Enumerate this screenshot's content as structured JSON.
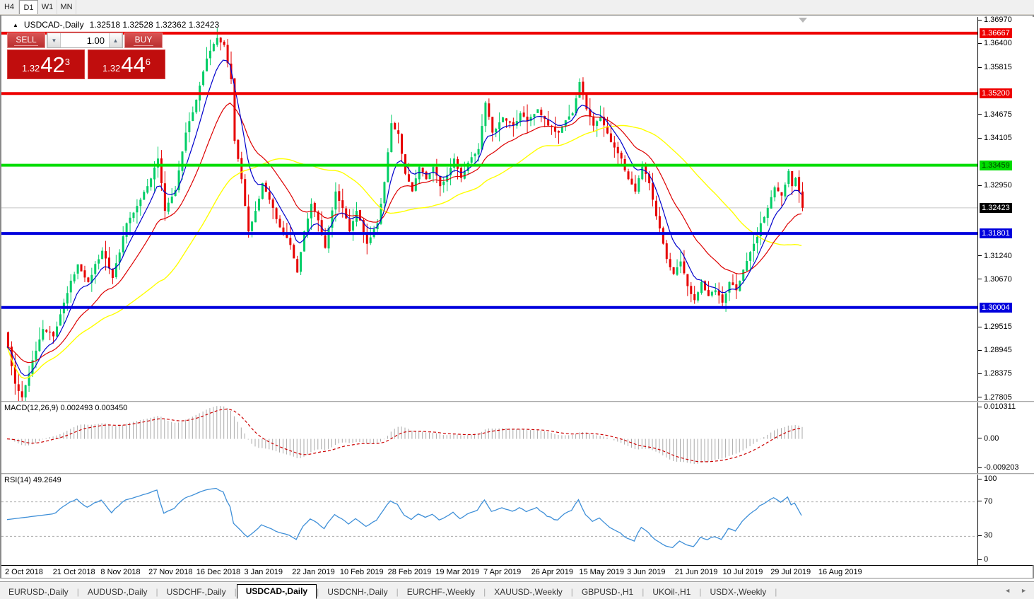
{
  "toolbar": {
    "timeframes": [
      {
        "label": "H4",
        "active": false
      },
      {
        "label": "D1",
        "active": true
      },
      {
        "label": "W1",
        "active": false
      },
      {
        "label": "MN",
        "active": false
      }
    ]
  },
  "chart": {
    "title_symbol": "USDCAD-,Daily",
    "title_quotes": "1.32518 1.32528 1.32362 1.32423",
    "trade_panel": {
      "sell_label": "SELL",
      "buy_label": "BUY",
      "volume": "1.00",
      "spin_down_icon": "▼",
      "spin_up_icon": "▲",
      "sell_price": {
        "prefix": "1.32",
        "big": "42",
        "sup": "3"
      },
      "buy_price": {
        "prefix": "1.32",
        "big": "44",
        "sup": "6"
      }
    }
  },
  "chart_data": {
    "type": "candlestick",
    "symbol": "USDCAD-",
    "timeframe": "Daily",
    "ylim": [
      1.2773,
      1.3706
    ],
    "count": 229,
    "anchors": [
      [
        0,
        1.2905
      ],
      [
        2,
        1.2815
      ],
      [
        4,
        1.2782
      ],
      [
        7,
        1.2872
      ],
      [
        10,
        1.2948
      ],
      [
        13,
        1.293
      ],
      [
        16,
        1.3012
      ],
      [
        20,
        1.3105
      ],
      [
        23,
        1.3062
      ],
      [
        27,
        1.3138
      ],
      [
        30,
        1.3072
      ],
      [
        34,
        1.3205
      ],
      [
        38,
        1.3262
      ],
      [
        40,
        1.3295
      ],
      [
        43,
        1.3362
      ],
      [
        45,
        1.3235
      ],
      [
        48,
        1.3285
      ],
      [
        51,
        1.3425
      ],
      [
        54,
        1.3505
      ],
      [
        57,
        1.3605
      ],
      [
        60,
        1.3655
      ],
      [
        62,
        1.3638
      ],
      [
        64,
        1.3555
      ],
      [
        65,
        1.3405
      ],
      [
        67,
        1.3312
      ],
      [
        69,
        1.3185
      ],
      [
        71,
        1.3235
      ],
      [
        73,
        1.3302
      ],
      [
        75,
        1.3262
      ],
      [
        78,
        1.3195
      ],
      [
        81,
        1.3152
      ],
      [
        83,
        1.3085
      ],
      [
        85,
        1.3185
      ],
      [
        87,
        1.3252
      ],
      [
        89,
        1.3212
      ],
      [
        91,
        1.3145
      ],
      [
        94,
        1.3282
      ],
      [
        96,
        1.3242
      ],
      [
        98,
        1.3185
      ],
      [
        100,
        1.3235
      ],
      [
        103,
        1.3155
      ],
      [
        106,
        1.3205
      ],
      [
        108,
        1.3305
      ],
      [
        110,
        1.3448
      ],
      [
        112,
        1.3422
      ],
      [
        114,
        1.3325
      ],
      [
        116,
        1.3282
      ],
      [
        118,
        1.3342
      ],
      [
        120,
        1.3312
      ],
      [
        122,
        1.3342
      ],
      [
        124,
        1.3295
      ],
      [
        126,
        1.3322
      ],
      [
        128,
        1.3362
      ],
      [
        130,
        1.3315
      ],
      [
        132,
        1.3352
      ],
      [
        135,
        1.3385
      ],
      [
        137,
        1.3498
      ],
      [
        139,
        1.3425
      ],
      [
        142,
        1.3462
      ],
      [
        145,
        1.3442
      ],
      [
        147,
        1.3472
      ],
      [
        149,
        1.3452
      ],
      [
        152,
        1.3482
      ],
      [
        155,
        1.3442
      ],
      [
        158,
        1.3425
      ],
      [
        160,
        1.3455
      ],
      [
        162,
        1.3472
      ],
      [
        164,
        1.3548
      ],
      [
        166,
        1.3482
      ],
      [
        168,
        1.3442
      ],
      [
        170,
        1.3462
      ],
      [
        173,
        1.3402
      ],
      [
        176,
        1.3362
      ],
      [
        178,
        1.3312
      ],
      [
        180,
        1.3282
      ],
      [
        182,
        1.3342
      ],
      [
        184,
        1.3302
      ],
      [
        186,
        1.3222
      ],
      [
        188,
        1.3155
      ],
      [
        189,
        1.3118
      ],
      [
        191,
        1.3082
      ],
      [
        193,
        1.3112
      ],
      [
        195,
        1.3052
      ],
      [
        197,
        1.3018
      ],
      [
        199,
        1.3062
      ],
      [
        201,
        1.3028
      ],
      [
        203,
        1.3042
      ],
      [
        205,
        1.3012
      ],
      [
        207,
        1.3062
      ],
      [
        209,
        1.3042
      ],
      [
        211,
        1.3092
      ],
      [
        213,
        1.3135
      ],
      [
        215,
        1.3172
      ],
      [
        216,
        1.3205
      ],
      [
        218,
        1.3242
      ],
      [
        220,
        1.3292
      ],
      [
        222,
        1.3272
      ],
      [
        224,
        1.3332
      ],
      [
        225,
        1.3295
      ],
      [
        226,
        1.3315
      ],
      [
        227,
        1.3282
      ],
      [
        228,
        1.32423
      ]
    ],
    "current_price": 1.32423,
    "current_price_label": "1.32423",
    "levels": [
      {
        "price": 1.36667,
        "label": "1.36667",
        "color": "#ee0000",
        "text_color": "#ffffff"
      },
      {
        "price": 1.352,
        "label": "1.35200",
        "color": "#ee0000",
        "text_color": "#ffffff"
      },
      {
        "price": 1.33459,
        "label": "1.33459",
        "color": "#00dd00",
        "text_color": "#004400"
      },
      {
        "price": 1.31801,
        "label": "1.31801",
        "color": "#0000dd",
        "text_color": "#ffffff"
      },
      {
        "price": 1.30004,
        "label": "1.30004",
        "color": "#0000dd",
        "text_color": "#ffffff"
      }
    ],
    "price_ticks": [
      "1.36970",
      "1.36400",
      "1.35815",
      "1.34675",
      "1.34105",
      "1.32950",
      "1.31240",
      "1.30670",
      "1.29515",
      "1.28945",
      "1.28375",
      "1.27805"
    ],
    "dates": [
      "2 Oct 2018",
      "21 Oct 2018",
      "8 Nov 2018",
      "27 Nov 2018",
      "16 Dec 2018",
      "3 Jan 2019",
      "22 Jan 2019",
      "10 Feb 2019",
      "28 Feb 2019",
      "19 Mar 2019",
      "7 Apr 2019",
      "26 Apr 2019",
      "15 May 2019",
      "3 Jun 2019",
      "21 Jun 2019",
      "10 Jul 2019",
      "29 Jul 2019",
      "16 Aug 2019"
    ],
    "indicators": {
      "macd": {
        "label": "MACD(12,26,9)",
        "values": "0.002493 0.003450",
        "axis_ticks": [
          {
            "value": 0.010311,
            "label": "0.010311"
          },
          {
            "value": 0.0,
            "label": "0.00"
          },
          {
            "value": -0.009203,
            "label": "-0.009203"
          }
        ]
      },
      "rsi": {
        "label": "RSI(14)",
        "values": "49.2649",
        "levels": [
          70,
          30
        ],
        "axis_ticks": [
          {
            "value": 100,
            "label": "100"
          },
          {
            "value": 70,
            "label": "70"
          },
          {
            "value": 30,
            "label": "30"
          },
          {
            "value": 0,
            "label": "0"
          }
        ]
      }
    },
    "colors": {
      "bull": "#00cd66",
      "bear": "#e60000",
      "ma_fast_blue": "#0000cc",
      "ma_mid_red": "#dd0000",
      "ma_slow_yellow": "#ffff00",
      "macd_hist": "#a9a9a9",
      "macd_signal": "#cc0000",
      "rsi_line": "#3e8fd8",
      "current_line": "#c8c8c8",
      "current_badge": "#000000"
    }
  },
  "tabbar": {
    "tabs": [
      {
        "label": "EURUSD-,Daily",
        "active": false
      },
      {
        "label": "AUDUSD-,Daily",
        "active": false
      },
      {
        "label": "USDCHF-,Daily",
        "active": false
      },
      {
        "label": "USDCAD-,Daily",
        "active": true
      },
      {
        "label": "USDCNH-,Daily",
        "active": false
      },
      {
        "label": "EURCHF-,Weekly",
        "active": false
      },
      {
        "label": "XAUUSD-,Weekly",
        "active": false
      },
      {
        "label": "GBPUSD-,H1",
        "active": false
      },
      {
        "label": "UKOil-,H1",
        "active": false
      },
      {
        "label": "USDX-,Weekly",
        "active": false
      }
    ],
    "scroll_left_icon": "◄",
    "scroll_right_icon": "►"
  }
}
